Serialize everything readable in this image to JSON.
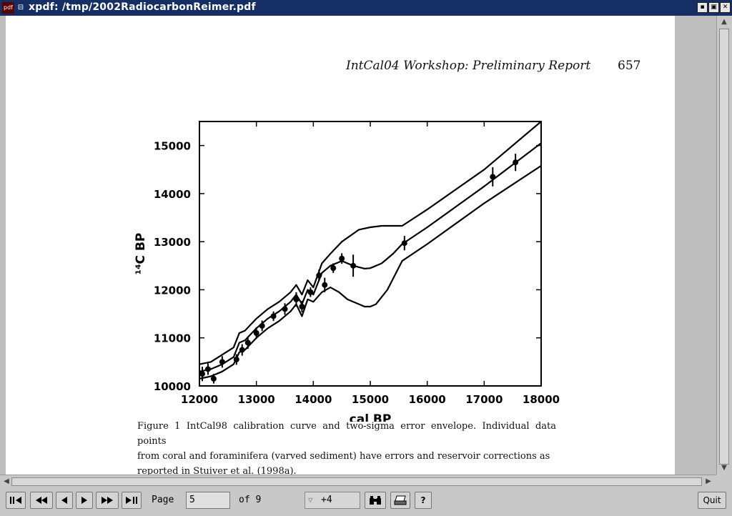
{
  "window": {
    "app_icon_label": "pdf",
    "title": "xpdf: /tmp/2002RadiocarbonReimer.pdf"
  },
  "document": {
    "running_header": "IntCal04 Workshop: Preliminary Report",
    "page_number": "657",
    "caption_lines": [
      "Figure 1  IntCal98 calibration curve and two-sigma error envelope. Individual data points",
      "from coral and foraminifera (varved sediment) have errors and reservoir corrections as",
      "reported in Stuiver et al. (1998a)."
    ]
  },
  "chart_data": {
    "type": "line",
    "xlabel": "cal BP",
    "ylabel": "¹⁴C BP",
    "xlim": [
      12000,
      18000
    ],
    "ylim": [
      10000,
      15500
    ],
    "x_ticks": [
      "12000",
      "13000",
      "14000",
      "15000",
      "16000",
      "17000",
      "18000"
    ],
    "y_ticks": [
      "10000",
      "11000",
      "12000",
      "13000",
      "14000",
      "15000"
    ],
    "series": [
      {
        "role": "upper envelope",
        "x": [
          12000,
          12200,
          12400,
          12600,
          12700,
          12800,
          13000,
          13200,
          13400,
          13600,
          13700,
          13800,
          13900,
          14000,
          14150,
          14300,
          14500,
          14800,
          15000,
          15200,
          15400,
          15560,
          16000,
          17000,
          18000
        ],
        "y": [
          10450,
          10500,
          10650,
          10800,
          11100,
          11150,
          11400,
          11600,
          11750,
          11950,
          12100,
          11900,
          12200,
          12050,
          12550,
          12750,
          13000,
          13250,
          13300,
          13330,
          13330,
          13330,
          13670,
          14500,
          15500
        ]
      },
      {
        "role": "calibration curve",
        "x": [
          12000,
          12200,
          12400,
          12600,
          12700,
          12800,
          13000,
          13200,
          13400,
          13600,
          13700,
          13800,
          13900,
          14000,
          14150,
          14300,
          14500,
          14700,
          14900,
          15000,
          15200,
          15400,
          15560,
          16000,
          17000,
          18000
        ],
        "y": [
          10300,
          10350,
          10450,
          10600,
          10900,
          10950,
          11200,
          11400,
          11550,
          11750,
          11900,
          11700,
          12000,
          11900,
          12350,
          12500,
          12600,
          12500,
          12440,
          12450,
          12550,
          12750,
          12950,
          13300,
          14150,
          15050
        ]
      },
      {
        "role": "lower envelope",
        "x": [
          12000,
          12200,
          12400,
          12600,
          12700,
          12800,
          13000,
          13200,
          13400,
          13600,
          13700,
          13800,
          13900,
          14000,
          14150,
          14300,
          14450,
          14600,
          14800,
          14900,
          15000,
          15100,
          15300,
          15560,
          16000,
          17000,
          18000
        ],
        "y": [
          10150,
          10200,
          10300,
          10450,
          10700,
          10750,
          11000,
          11200,
          11350,
          11550,
          11700,
          11450,
          11800,
          11750,
          11950,
          12050,
          11950,
          11800,
          11700,
          11650,
          11650,
          11700,
          12000,
          12600,
          12950,
          13800,
          14580
        ]
      }
    ],
    "points": [
      {
        "x": 12050,
        "y": 10250,
        "err": 150
      },
      {
        "x": 12150,
        "y": 10350,
        "err": 120
      },
      {
        "x": 12250,
        "y": 10150,
        "err": 100
      },
      {
        "x": 12400,
        "y": 10500,
        "err": 120
      },
      {
        "x": 12650,
        "y": 10550,
        "err": 110
      },
      {
        "x": 12750,
        "y": 10750,
        "err": 120
      },
      {
        "x": 12850,
        "y": 10900,
        "err": 130
      },
      {
        "x": 13000,
        "y": 11100,
        "err": 120
      },
      {
        "x": 13100,
        "y": 11250,
        "err": 110
      },
      {
        "x": 13300,
        "y": 11450,
        "err": 100
      },
      {
        "x": 13500,
        "y": 11600,
        "err": 120
      },
      {
        "x": 13700,
        "y": 11800,
        "err": 150
      },
      {
        "x": 13800,
        "y": 11650,
        "err": 120
      },
      {
        "x": 13950,
        "y": 11950,
        "err": 100
      },
      {
        "x": 14100,
        "y": 12300,
        "err": 120
      },
      {
        "x": 14200,
        "y": 12100,
        "err": 150
      },
      {
        "x": 14350,
        "y": 12450,
        "err": 100
      },
      {
        "x": 14500,
        "y": 12650,
        "err": 110
      },
      {
        "x": 14700,
        "y": 12500,
        "err": 230
      },
      {
        "x": 15600,
        "y": 12970,
        "err": 150
      },
      {
        "x": 17150,
        "y": 14350,
        "err": 200
      },
      {
        "x": 17550,
        "y": 14650,
        "err": 180
      }
    ]
  },
  "toolbar": {
    "page_label": "Page",
    "page_value": "5",
    "of_label": "of 9",
    "zoom_value": "+4",
    "quit_label": "Quit",
    "help_label": "?"
  }
}
